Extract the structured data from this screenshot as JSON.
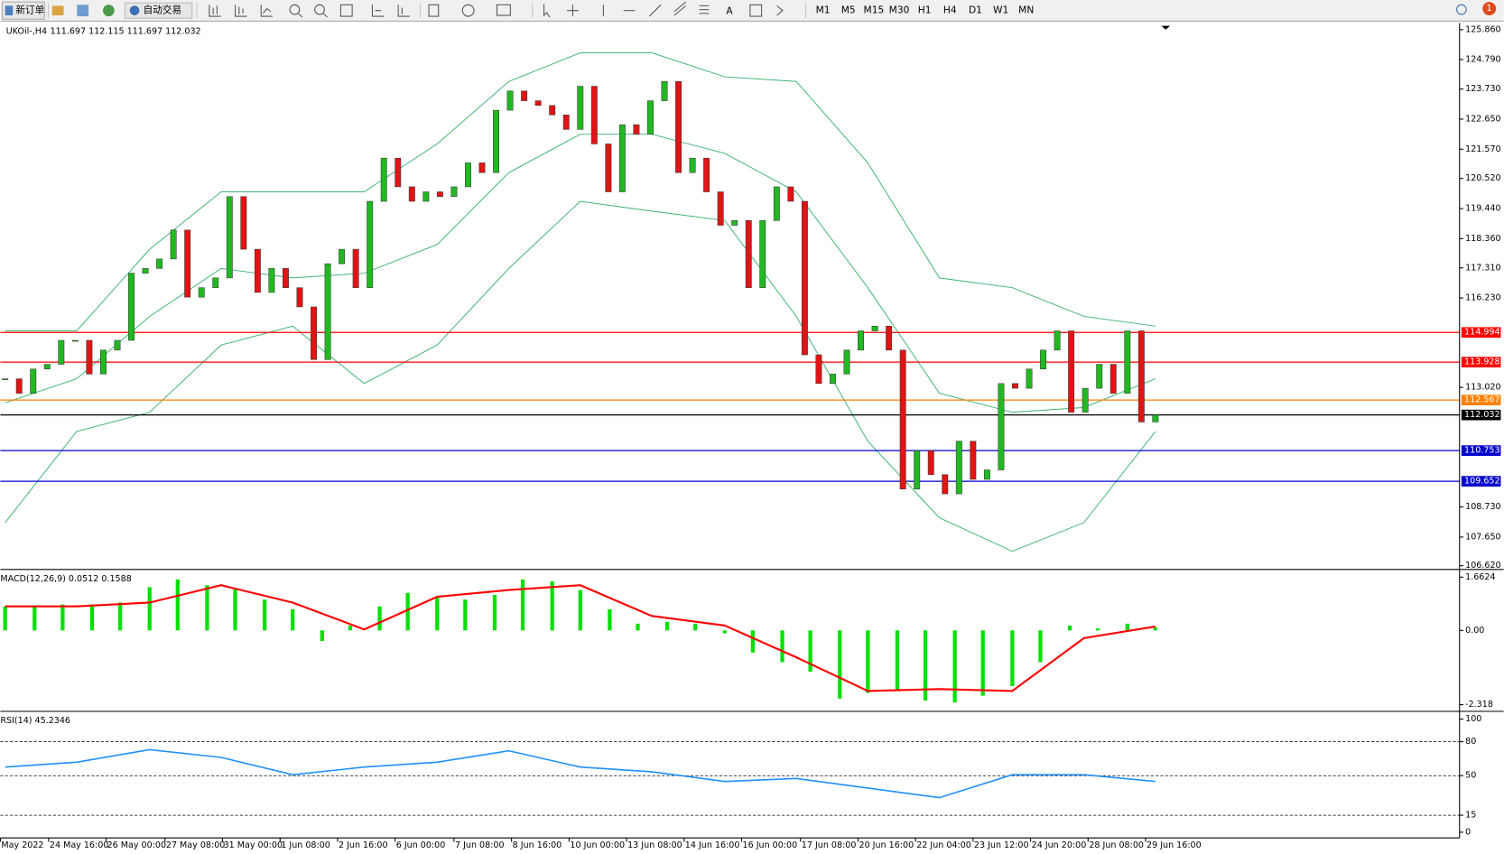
{
  "toolbar": {
    "new_order": "新订单",
    "auto_trading": "自动交易",
    "timeframes": [
      "M1",
      "M5",
      "M15",
      "M30",
      "H1",
      "H4",
      "D1",
      "W1",
      "MN"
    ],
    "notifications": "1"
  },
  "chart_data": [
    {
      "type": "candlestick",
      "title": "UKOil-,H4",
      "ohlc_label": "111.697 112.115 111.697 112.032",
      "up_color": "#22b822",
      "down_color": "#e01414",
      "close": [
        113.33,
        112.81,
        113.68,
        113.85,
        114.71,
        114.71,
        113.5,
        114.36,
        114.71,
        117.12,
        117.29,
        117.63,
        118.67,
        116.26,
        116.6,
        116.95,
        119.87,
        117.98,
        116.43,
        117.29,
        116.6,
        115.91,
        114.02,
        117.46,
        117.98,
        116.6,
        119.7,
        121.25,
        120.22,
        119.7,
        120.04,
        119.87,
        120.22,
        121.08,
        120.73,
        122.97,
        123.66,
        123.31,
        123.14,
        122.8,
        122.28,
        123.83,
        121.76,
        120.04,
        122.45,
        122.11,
        123.31,
        124.0,
        120.73,
        121.25,
        120.04,
        118.84,
        119.01,
        116.6,
        119.01,
        120.22,
        119.7,
        114.19,
        113.16,
        113.5,
        114.36,
        115.05,
        115.22,
        114.36,
        109.37,
        110.75,
        109.89,
        109.2,
        111.09,
        109.72,
        110.06,
        113.16,
        112.99,
        113.68,
        114.36,
        115.05,
        112.13,
        112.99,
        113.85,
        112.81,
        115.05,
        111.78,
        112.032
      ],
      "bands": {
        "color": "#3cb371",
        "x": [
          0,
          5.1,
          10.3,
          15.4,
          20.5,
          25.6,
          30.8,
          35.9,
          41,
          46.1,
          51.3,
          56.4,
          61.5,
          66.6,
          71.8,
          76.9,
          82
        ],
        "upper": [
          115.05,
          115.05,
          117.98,
          120.04,
          120.04,
          120.04,
          121.76,
          124.0,
          125.03,
          125.03,
          124.17,
          124.0,
          121.08,
          116.95,
          116.6,
          115.57,
          115.22
        ],
        "middle": [
          112.47,
          113.33,
          115.57,
          117.29,
          116.95,
          117.12,
          118.15,
          120.73,
          122.11,
          122.11,
          121.42,
          120.04,
          116.6,
          112.81,
          112.13,
          112.3,
          113.33
        ],
        "lower": [
          108.17,
          111.44,
          112.13,
          114.54,
          115.22,
          113.16,
          114.54,
          117.29,
          119.7,
          119.35,
          119.01,
          115.57,
          111.09,
          108.34,
          107.14,
          108.17,
          111.44
        ]
      },
      "levels": [
        {
          "value": 114.994,
          "color": "#ff0000"
        },
        {
          "value": 113.928,
          "color": "#ff0000"
        },
        {
          "value": 112.567,
          "color": "#ff8000"
        },
        {
          "value": 112.032,
          "color": "#000000"
        },
        {
          "value": 110.753,
          "color": "#0000cc"
        },
        {
          "value": 109.652,
          "color": "#0000cc"
        }
      ],
      "xlim": [
        -0.34,
        103.68
      ],
      "ylim": [
        106.52,
        126.1
      ],
      "yticks": [
        {
          "value": 125.86,
          "label": "125.860"
        },
        {
          "value": 124.79,
          "label": "124.790"
        },
        {
          "value": 123.73,
          "label": "123.730"
        },
        {
          "value": 122.65,
          "label": "122.650"
        },
        {
          "value": 121.57,
          "label": "121.570"
        },
        {
          "value": 120.52,
          "label": "120.520"
        },
        {
          "value": 119.44,
          "label": "119.440"
        },
        {
          "value": 118.36,
          "label": "118.360"
        },
        {
          "value": 117.31,
          "label": "117.310"
        },
        {
          "value": 116.23,
          "label": "116.230"
        },
        {
          "value": 113.02,
          "label": "113.020"
        },
        {
          "value": 108.73,
          "label": "108.730"
        },
        {
          "value": 107.65,
          "label": "107.650"
        },
        {
          "value": 106.62,
          "label": "106.620"
        }
      ],
      "xticks": [
        {
          "value": -0.34,
          "label": "May 2022"
        },
        {
          "value": 3.1,
          "label": "24 May 16:00"
        },
        {
          "value": 7.2,
          "label": "26 May 00:00"
        },
        {
          "value": 11.4,
          "label": "27 May 08:00"
        },
        {
          "value": 15.5,
          "label": "31 May 00:00"
        },
        {
          "value": 19.6,
          "label": "1 Jun 08:00"
        },
        {
          "value": 23.7,
          "label": "2 Jun 16:00"
        },
        {
          "value": 27.8,
          "label": "6 Jun 00:00"
        },
        {
          "value": 32,
          "label": "7 Jun 08:00"
        },
        {
          "value": 36.1,
          "label": "8 Jun 16:00"
        },
        {
          "value": 40.2,
          "label": "10 Jun 00:00"
        },
        {
          "value": 44.3,
          "label": "13 Jun 08:00"
        },
        {
          "value": 48.4,
          "label": "14 Jun 16:00"
        },
        {
          "value": 52.5,
          "label": "16 Jun 00:00"
        },
        {
          "value": 56.7,
          "label": "17 Jun 08:00"
        },
        {
          "value": 60.8,
          "label": "20 Jun 16:00"
        },
        {
          "value": 64.9,
          "label": "22 Jun 04:00"
        },
        {
          "value": 69,
          "label": "23 Jun 12:00"
        },
        {
          "value": 73.1,
          "label": "24 Jun 20:00"
        },
        {
          "value": 77.2,
          "label": "28 Jun 08:00"
        },
        {
          "value": 81.3,
          "label": "29 Jun 16:00"
        }
      ]
    },
    {
      "type": "macd",
      "title": "MACD(12,26,9) 0.0512 0.1588",
      "color": "#00e000",
      "signal_color": "#ff0000",
      "x": [
        0,
        2.1,
        4.1,
        6.2,
        8.2,
        10.3,
        12.3,
        14.4,
        16.4,
        18.5,
        20.5,
        22.6,
        24.6,
        26.7,
        28.7,
        30.8,
        32.8,
        34.9,
        36.9,
        39,
        41,
        43.1,
        45.1,
        47.2,
        49.2,
        51.3,
        53.3,
        55.4,
        57.4,
        59.5,
        61.5,
        63.6,
        65.6,
        67.7,
        69.7,
        71.8,
        73.8,
        75.9,
        77.9,
        80,
        82
      ],
      "histogram": [
        0.75,
        0.75,
        0.81,
        0.81,
        0.87,
        1.35,
        1.59,
        1.41,
        1.29,
        0.96,
        0.66,
        -0.33,
        0.15,
        0.75,
        1.17,
        1.05,
        0.96,
        1.11,
        1.59,
        1.53,
        1.26,
        0.66,
        0.21,
        0.27,
        0.21,
        -0.09,
        -0.69,
        -0.99,
        -1.29,
        -2.13,
        -1.95,
        -1.89,
        -2.19,
        -2.25,
        -2.04,
        -1.74,
        -0.99,
        0.15,
        0.06,
        0.21,
        0.09
      ],
      "signal_x": [
        0,
        5.1,
        10.3,
        15.4,
        20.5,
        25.6,
        30.8,
        35.9,
        41,
        46.1,
        51.3,
        56.4,
        61.5,
        66.6,
        71.8,
        76.9,
        82
      ],
      "signal": [
        0.75,
        0.75,
        0.87,
        1.41,
        0.87,
        0.03,
        1.05,
        1.26,
        1.41,
        0.45,
        0.15,
        -0.84,
        -1.89,
        -1.83,
        -1.89,
        -0.24,
        0.12
      ],
      "ylim": [
        -2.498,
        1.842
      ],
      "yticks": [
        1.6624,
        {
          "value": 0,
          "label": "0.00"
        },
        -2.318
      ]
    },
    {
      "type": "rsi",
      "title": "RSI(14) 45.2346",
      "color": "#1e90ff",
      "x": [
        0,
        5.1,
        10.3,
        15.4,
        20.5,
        25.6,
        30.8,
        35.9,
        41,
        46.1,
        51.3,
        56.4,
        61.5,
        66.6,
        71.8,
        76.9,
        82
      ],
      "values": [
        57.6,
        61.9,
        72.9,
        66.1,
        50.8,
        57.6,
        61.9,
        72.0,
        57.6,
        53.4,
        44.9,
        47.5,
        39.0,
        30.5,
        50.8,
        50.8,
        44.9
      ],
      "levels": [
        80,
        50,
        15
      ],
      "ylim": [
        -4.2,
        105.1
      ],
      "yticks": [
        100,
        80,
        50,
        15,
        0
      ]
    }
  ]
}
